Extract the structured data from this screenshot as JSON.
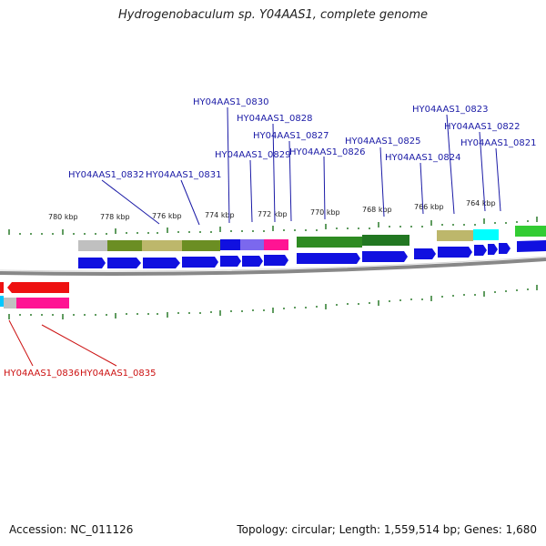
{
  "title": "Hydrogenobaculum sp. Y04AAS1, complete genome",
  "footer": {
    "accession": "Accession: NC_011126",
    "summary": "Topology: circular; Length: 1,559,514 bp; Genes: 1,680"
  },
  "scale_labels": [
    "780 kbp",
    "778 kbp",
    "776 kbp",
    "774 kbp",
    "772 kbp",
    "770 kbp",
    "768 kbp",
    "766 kbp",
    "764 kbp"
  ],
  "gene_labels_forward": [
    "HY04AAS1_0830",
    "HY04AAS1_0828",
    "HY04AAS1_0827",
    "HY04AAS1_0829",
    "HY04AAS1_0826",
    "HY04AAS1_0825",
    "HY04AAS1_0824",
    "HY04AAS1_0823",
    "HY04AAS1_0822",
    "HY04AAS1_0821",
    "HY04AAS1_0832",
    "HY04AAS1_0831"
  ],
  "gene_labels_reverse": [
    "HY04AAS1_0836",
    "HY04AAS1_0835"
  ],
  "colors": {
    "gene_forward": "#1010e0",
    "gene_reverse": "#ee1111",
    "label_forward": "#1a1aa6",
    "label_reverse": "#cc1111",
    "tick": "#2a7a2a",
    "backbone": "#888888"
  }
}
